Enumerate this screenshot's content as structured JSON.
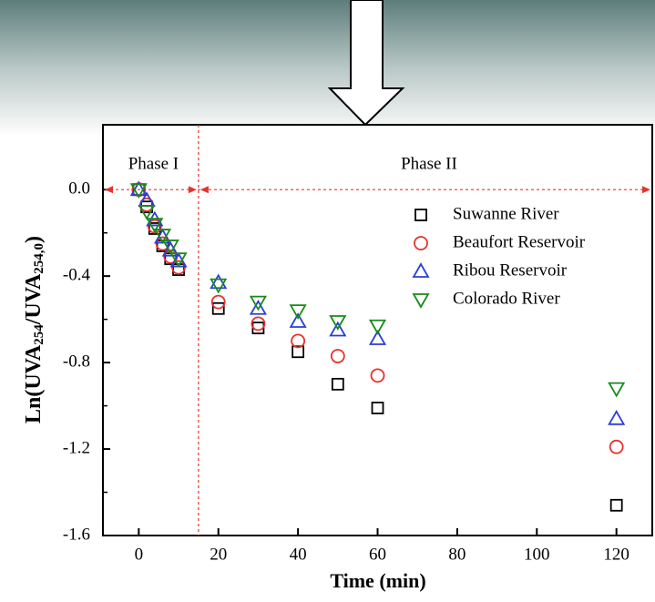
{
  "chart_data": {
    "type": "scatter",
    "xlabel": "Time (min)",
    "ylabel_parts": [
      "Ln(UVA",
      "254",
      "/UVA",
      "254,0",
      ")"
    ],
    "annotations": [
      "Phase I",
      "Phase II"
    ],
    "phase_boundary": 15,
    "phase_arrow_y": 0,
    "x": [
      0,
      2,
      4,
      6,
      8,
      10,
      20,
      30,
      40,
      50,
      60,
      120
    ],
    "series": [
      {
        "name": "Suwanne River",
        "color": "#000000",
        "marker": "square",
        "values": [
          0,
          -0.08,
          -0.18,
          -0.26,
          -0.32,
          -0.37,
          -0.55,
          -0.64,
          -0.75,
          -0.9,
          -1.01,
          -1.46
        ]
      },
      {
        "name": "Beaufort Reservoir",
        "color": "#e8322c",
        "marker": "circle",
        "values": [
          0,
          -0.07,
          -0.17,
          -0.25,
          -0.31,
          -0.36,
          -0.52,
          -0.62,
          -0.7,
          -0.77,
          -0.86,
          -1.19
        ]
      },
      {
        "name": "Ribou Reservoir",
        "color": "#2a3fd6",
        "marker": "triangle-up",
        "values": [
          0,
          -0.05,
          -0.14,
          -0.22,
          -0.28,
          -0.33,
          -0.43,
          -0.55,
          -0.61,
          -0.65,
          -0.69,
          -1.06
        ]
      },
      {
        "name": "Colorado River",
        "color": "#1a8a1a",
        "marker": "triangle-down",
        "values": [
          0,
          -0.1,
          -0.16,
          -0.21,
          -0.26,
          -0.32,
          -0.44,
          -0.52,
          -0.56,
          -0.61,
          -0.63,
          -0.92
        ]
      }
    ],
    "xlim": [
      -9,
      129
    ],
    "ylim": [
      -1.6,
      0.3
    ],
    "xticks": [
      0,
      20,
      40,
      60,
      80,
      100,
      120
    ],
    "yticks": [
      {
        "value": 0,
        "label": "0.0"
      },
      -0.4,
      -0.8,
      -1.2,
      -1.6
    ],
    "grid": false
  }
}
